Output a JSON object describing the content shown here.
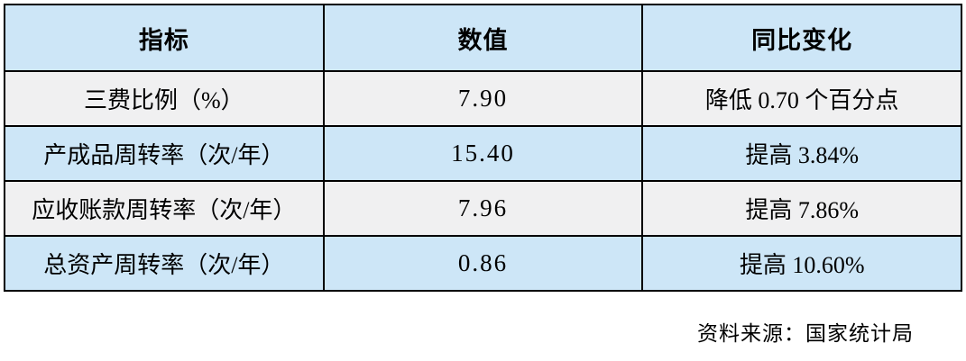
{
  "chart_data": {
    "type": "table",
    "columns": [
      "指标",
      "数值",
      "同比变化"
    ],
    "rows": [
      [
        "三费比例（%）",
        "7.90",
        "降低 0.70 个百分点"
      ],
      [
        "产成品周转率（次/年）",
        "15.40",
        "提高 3.84%"
      ],
      [
        "应收账款周转率（次/年）",
        "7.96",
        "提高 7.86%"
      ],
      [
        "总资产周转率（次/年）",
        "0.86",
        "提高 10.60%"
      ]
    ],
    "source_note": "资料来源：国家统计局",
    "layout": {
      "grid": "on",
      "header_position": "top",
      "cell_alignment": "center",
      "row_striping": "header-blue, then alternating gray/blue"
    }
  },
  "colors": {
    "header_bg": "#cde6f7",
    "row_blue": "#cde6f7",
    "row_gray": "#f0f0f1",
    "border": "#000000",
    "text": "#000000",
    "page_bg": "#ffffff"
  }
}
